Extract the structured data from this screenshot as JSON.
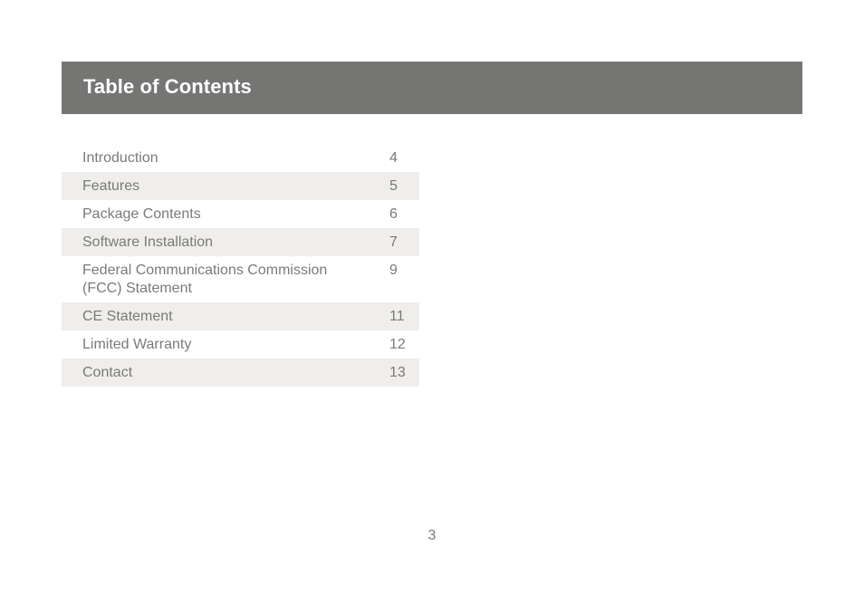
{
  "header": {
    "title": "Table of Contents"
  },
  "toc": {
    "entries": [
      {
        "label": "Introduction",
        "page": "4"
      },
      {
        "label": "Features",
        "page": "5"
      },
      {
        "label": "Package Contents",
        "page": "6"
      },
      {
        "label": "Software Installation",
        "page": "7"
      },
      {
        "label": "Federal Communications Commission\n(FCC) Statement",
        "page": "9"
      },
      {
        "label": "CE Statement",
        "page": "11"
      },
      {
        "label": "Limited Warranty",
        "page": "12"
      },
      {
        "label": "Contact",
        "page": "13"
      }
    ]
  },
  "footer": {
    "page_number": "3"
  },
  "colors": {
    "header_bg": "#757673",
    "row_shade": "#efeeed",
    "text": "#7a7a78"
  }
}
